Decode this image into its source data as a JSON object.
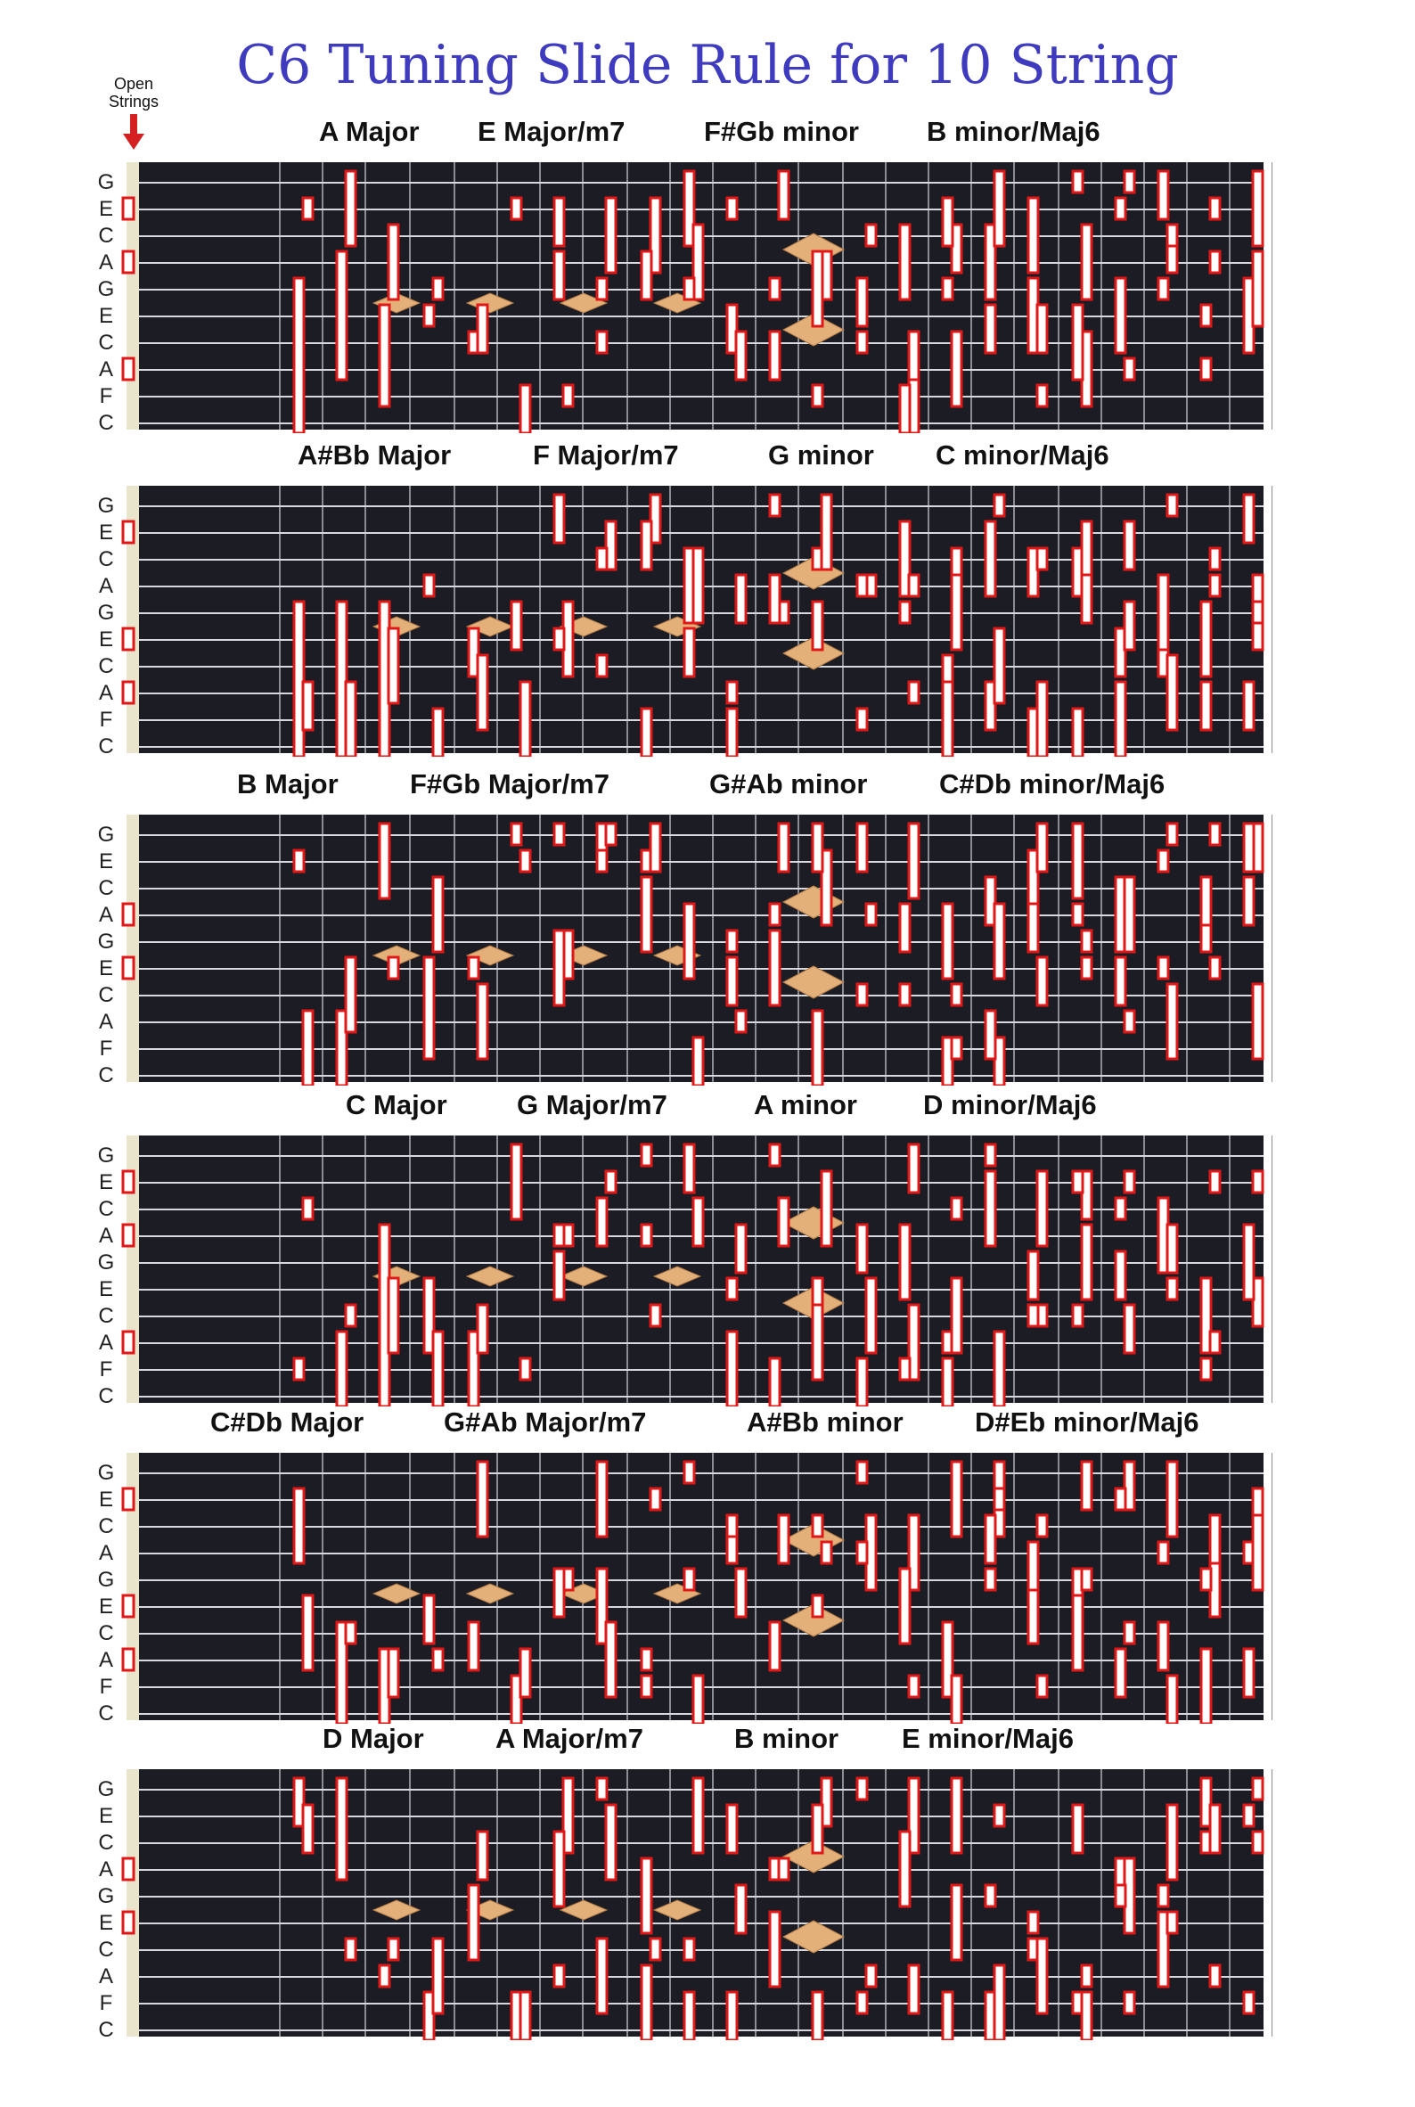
{
  "title": "C6 Tuning Slide Rule for 10 String",
  "open_strings_label": [
    "Open",
    "Strings"
  ],
  "string_names": [
    "G",
    "E",
    "C",
    "A",
    "G",
    "E",
    "C",
    "A",
    "F",
    "C"
  ],
  "colors": {
    "title": "#3f3bbf",
    "fretboard": "#1c1d24",
    "string": "#d7d9de",
    "fret": "#8a8c92",
    "marker_outline": "#e01818",
    "marker_fill": "#ffffff",
    "inlay": "#e4b07a",
    "arrow": "#d42020"
  },
  "sections": [
    {
      "chords": [
        "A Major",
        "E Major/m7",
        "F#Gb  minor",
        "B minor/Maj6"
      ]
    },
    {
      "chords": [
        "A#Bb  Major",
        "F Major/m7",
        "G minor",
        "C minor/Maj6"
      ]
    },
    {
      "chords": [
        "B Major",
        "F#Gb  Major/m7",
        "G#Ab  minor",
        "C#Db  minor/Maj6"
      ]
    },
    {
      "chords": [
        "C Major",
        "G Major/m7",
        "A minor",
        "D minor/Maj6"
      ]
    },
    {
      "chords": [
        "C#Db  Major",
        "G#Ab  Major/m7",
        "A#Bb  minor",
        "D#Eb  minor/Maj6"
      ]
    },
    {
      "chords": [
        "D Major",
        "A Major/m7",
        "B minor",
        "E minor/Maj6"
      ]
    }
  ]
}
